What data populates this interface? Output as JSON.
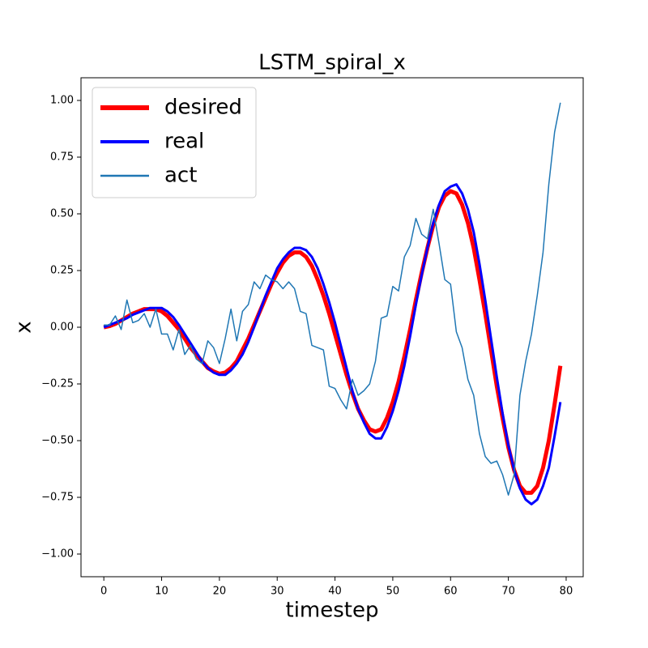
{
  "chart_data": {
    "type": "line",
    "title": "LSTM_spiral_x",
    "x_label": "timestep",
    "y_label": "x",
    "x": [
      0,
      1,
      2,
      3,
      4,
      5,
      6,
      7,
      8,
      9,
      10,
      11,
      12,
      13,
      14,
      15,
      16,
      17,
      18,
      19,
      20,
      21,
      22,
      23,
      24,
      25,
      26,
      27,
      28,
      29,
      30,
      31,
      32,
      33,
      34,
      35,
      36,
      37,
      38,
      39,
      40,
      41,
      42,
      43,
      44,
      45,
      46,
      47,
      48,
      49,
      50,
      51,
      52,
      53,
      54,
      55,
      56,
      57,
      58,
      59,
      60,
      61,
      62,
      63,
      64,
      65,
      66,
      67,
      68,
      69,
      70,
      71,
      72,
      73,
      74,
      75,
      76,
      77,
      78,
      79
    ],
    "series": [
      {
        "name": "desired",
        "color": "#ff0000",
        "linewidth": 5,
        "values": [
          0.0,
          0.005,
          0.015,
          0.03,
          0.045,
          0.06,
          0.07,
          0.08,
          0.08,
          0.08,
          0.07,
          0.05,
          0.02,
          -0.01,
          -0.05,
          -0.09,
          -0.12,
          -0.15,
          -0.18,
          -0.195,
          -0.205,
          -0.2,
          -0.18,
          -0.15,
          -0.1,
          -0.05,
          0.01,
          0.07,
          0.13,
          0.19,
          0.24,
          0.285,
          0.315,
          0.33,
          0.33,
          0.31,
          0.27,
          0.21,
          0.14,
          0.06,
          -0.03,
          -0.12,
          -0.21,
          -0.29,
          -0.36,
          -0.41,
          -0.45,
          -0.46,
          -0.45,
          -0.4,
          -0.33,
          -0.24,
          -0.13,
          -0.01,
          0.12,
          0.24,
          0.35,
          0.45,
          0.53,
          0.58,
          0.6,
          0.59,
          0.54,
          0.46,
          0.35,
          0.21,
          0.06,
          -0.1,
          -0.26,
          -0.4,
          -0.53,
          -0.63,
          -0.7,
          -0.73,
          -0.73,
          -0.7,
          -0.62,
          -0.5,
          -0.34,
          -0.17
        ]
      },
      {
        "name": "real",
        "color": "#0000ff",
        "linewidth": 3,
        "values": [
          0.0,
          0.01,
          0.02,
          0.03,
          0.04,
          0.055,
          0.065,
          0.075,
          0.085,
          0.085,
          0.085,
          0.07,
          0.045,
          0.01,
          -0.03,
          -0.07,
          -0.11,
          -0.15,
          -0.18,
          -0.2,
          -0.21,
          -0.21,
          -0.19,
          -0.16,
          -0.12,
          -0.065,
          0.0,
          0.07,
          0.14,
          0.2,
          0.26,
          0.3,
          0.33,
          0.35,
          0.35,
          0.34,
          0.31,
          0.26,
          0.19,
          0.11,
          0.02,
          -0.08,
          -0.18,
          -0.28,
          -0.36,
          -0.42,
          -0.47,
          -0.49,
          -0.49,
          -0.44,
          -0.37,
          -0.28,
          -0.17,
          -0.04,
          0.1,
          0.23,
          0.35,
          0.46,
          0.54,
          0.6,
          0.62,
          0.63,
          0.59,
          0.52,
          0.42,
          0.28,
          0.12,
          -0.05,
          -0.22,
          -0.38,
          -0.52,
          -0.63,
          -0.71,
          -0.76,
          -0.78,
          -0.76,
          -0.7,
          -0.62,
          -0.48,
          -0.33
        ]
      },
      {
        "name": "act",
        "color": "#1f77b4",
        "linewidth": 1.5,
        "values": [
          0.01,
          0.01,
          0.05,
          -0.01,
          0.12,
          0.02,
          0.03,
          0.06,
          0.0,
          0.08,
          -0.03,
          -0.03,
          -0.1,
          -0.01,
          -0.12,
          -0.08,
          -0.14,
          -0.16,
          -0.06,
          -0.09,
          -0.16,
          -0.05,
          0.08,
          -0.06,
          0.07,
          0.1,
          0.2,
          0.17,
          0.23,
          0.21,
          0.2,
          0.17,
          0.2,
          0.17,
          0.07,
          0.06,
          -0.08,
          -0.09,
          -0.1,
          -0.26,
          -0.27,
          -0.32,
          -0.36,
          -0.23,
          -0.3,
          -0.28,
          -0.25,
          -0.15,
          0.04,
          0.05,
          0.18,
          0.16,
          0.31,
          0.36,
          0.48,
          0.41,
          0.39,
          0.52,
          0.37,
          0.21,
          0.19,
          -0.02,
          -0.09,
          -0.23,
          -0.3,
          -0.47,
          -0.57,
          -0.6,
          -0.59,
          -0.65,
          -0.74,
          -0.65,
          -0.3,
          -0.15,
          -0.03,
          0.14,
          0.33,
          0.63,
          0.86,
          0.99
        ]
      }
    ],
    "xlim": [
      -3.95,
      82.95
    ],
    "ylim": [
      -1.1,
      1.1
    ],
    "xticks": [
      0,
      10,
      20,
      30,
      40,
      50,
      60,
      70,
      80
    ],
    "yticks": [
      {
        "value": -1,
        "label": "−1.00"
      },
      {
        "value": -0.75,
        "label": "−0.75"
      },
      {
        "value": -0.5,
        "label": "−0.50"
      },
      {
        "value": -0.25,
        "label": "−0.25"
      },
      {
        "value": 0,
        "label": "0.00"
      },
      {
        "value": 0.25,
        "label": "0.25"
      },
      {
        "value": 0.5,
        "label": "0.50"
      },
      {
        "value": 0.75,
        "label": "0.75"
      },
      {
        "value": 1,
        "label": "1.00"
      }
    ],
    "grid": false,
    "legend": "upper left"
  }
}
